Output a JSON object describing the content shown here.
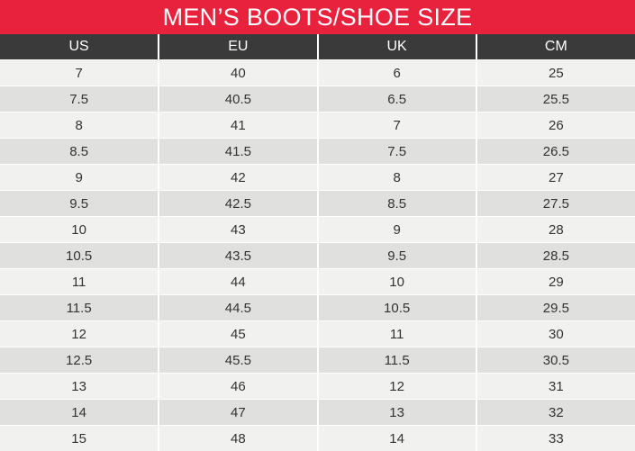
{
  "title": "MEN’S BOOTS/SHOE SIZE",
  "colors": {
    "title_bg": "#e8213d",
    "header_bg": "#3a3a3a",
    "row_light": "#f1f2ef",
    "row_dark": "#e0e1de"
  },
  "columns": [
    "US",
    "EU",
    "UK",
    "CM"
  ],
  "rows": [
    [
      "7",
      "40",
      "6",
      "25"
    ],
    [
      "7.5",
      "40.5",
      "6.5",
      "25.5"
    ],
    [
      "8",
      "41",
      "7",
      "26"
    ],
    [
      "8.5",
      "41.5",
      "7.5",
      "26.5"
    ],
    [
      "9",
      "42",
      "8",
      "27"
    ],
    [
      "9.5",
      "42.5",
      "8.5",
      "27.5"
    ],
    [
      "10",
      "43",
      "9",
      "28"
    ],
    [
      "10.5",
      "43.5",
      "9.5",
      "28.5"
    ],
    [
      "11",
      "44",
      "10",
      "29"
    ],
    [
      "11.5",
      "44.5",
      "10.5",
      "29.5"
    ],
    [
      "12",
      "45",
      "11",
      "30"
    ],
    [
      "12.5",
      "45.5",
      "11.5",
      "30.5"
    ],
    [
      "13",
      "46",
      "12",
      "31"
    ],
    [
      "14",
      "47",
      "13",
      "32"
    ],
    [
      "15",
      "48",
      "14",
      "33"
    ]
  ]
}
